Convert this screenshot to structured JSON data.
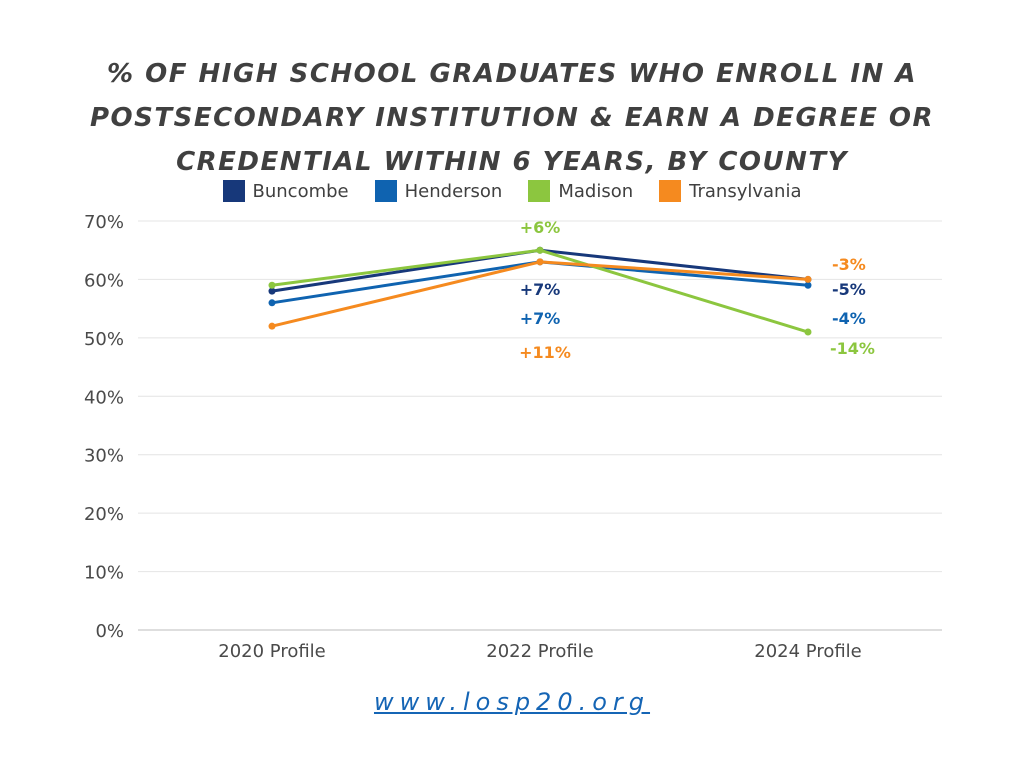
{
  "chart_data": {
    "type": "line",
    "title": "% OF HIGH SCHOOL GRADUATES WHO ENROLL IN A POSTSECONDARY INSTITUTION & EARN A DEGREE OR CREDENTIAL WITHIN 6 YEARS, BY COUNTY",
    "categories": [
      "2020 Profile",
      "2022 Profile",
      "2024 Profile"
    ],
    "ylim": [
      0,
      70
    ],
    "yticks": [
      "0%",
      "10%",
      "20%",
      "30%",
      "40%",
      "50%",
      "60%",
      "70%"
    ],
    "grid": true,
    "legend_placement": "top",
    "series": [
      {
        "name": "Buncombe",
        "color": "#17387a",
        "values": [
          58,
          65,
          60
        ],
        "change_labels": [
          "+7%",
          "-5%"
        ]
      },
      {
        "name": "Henderson",
        "color": "#0f63b0",
        "values": [
          56,
          63,
          59
        ],
        "change_labels": [
          "+7%",
          "-4%"
        ]
      },
      {
        "name": "Madison",
        "color": "#8cc63f",
        "values": [
          59,
          65,
          51
        ],
        "change_labels": [
          "+6%",
          "-14%"
        ]
      },
      {
        "name": "Transylvania",
        "color": "#f58a1f",
        "values": [
          52,
          63,
          60
        ],
        "change_labels": [
          "+11%",
          "-3%"
        ]
      }
    ]
  },
  "footer": {
    "url": "www.losp20.org"
  }
}
